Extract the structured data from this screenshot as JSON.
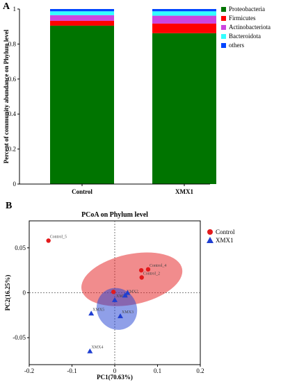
{
  "panels": {
    "a_letter": "A",
    "b_letter": "B"
  },
  "chart_data": [
    {
      "type": "bar",
      "stacked": true,
      "title": "",
      "xlabel": "",
      "ylabel": "Percent of community abundance on Phylum level",
      "ylim": [
        0,
        1
      ],
      "yticks": [
        0,
        0.2,
        0.4,
        0.6,
        0.8,
        1
      ],
      "ytick_labels": [
        "0",
        "0.2",
        "0.4",
        "0.6",
        "0.8",
        "1"
      ],
      "categories": [
        "Control",
        "XMX1"
      ],
      "legend_position": "right",
      "series": [
        {
          "name": "Proteobacteria",
          "color": "#007400",
          "values": [
            0.905,
            0.862
          ]
        },
        {
          "name": "Firmicutes",
          "color": "#ff0000",
          "values": [
            0.028,
            0.055
          ]
        },
        {
          "name": "Actinobacteriota",
          "color": "#cc44e0",
          "values": [
            0.032,
            0.045
          ]
        },
        {
          "name": "Bacteroidota",
          "color": "#33ffff",
          "values": [
            0.022,
            0.025
          ]
        },
        {
          "name": "others",
          "color": "#0044ff",
          "values": [
            0.013,
            0.013
          ]
        }
      ]
    },
    {
      "type": "scatter",
      "title": "PCoA on Phylum level",
      "xlabel": "PC1(70.63%)",
      "ylabel": "PC2(16.25%)",
      "xlim": [
        -0.2,
        0.2
      ],
      "ylim": [
        -0.08,
        0.08
      ],
      "xticks": [
        -0.2,
        -0.1,
        0,
        0.1,
        0.2
      ],
      "xtick_labels": [
        "-0.2",
        "-0.1",
        "0",
        "0.1",
        "0.2"
      ],
      "yticks": [
        -0.05,
        0,
        0.05
      ],
      "ytick_labels": [
        "-0.05",
        "0",
        "0.05"
      ],
      "legend_position": "top-right",
      "series": [
        {
          "name": "Control",
          "color": "#e31a1c",
          "marker": "circle",
          "points": [
            {
              "label": "Control_5",
              "x": -0.155,
              "y": 0.058
            },
            {
              "label": "",
              "x": -0.003,
              "y": 0.001
            },
            {
              "label": "Control_2",
              "x": 0.063,
              "y": 0.017
            },
            {
              "label": "",
              "x": 0.062,
              "y": 0.025
            },
            {
              "label": "Control_4",
              "x": 0.078,
              "y": 0.026
            }
          ],
          "ellipse": {
            "cx": 0.04,
            "cy": 0.015,
            "rx": 0.12,
            "ry": 0.028,
            "angle_deg": -12
          }
        },
        {
          "name": "XMX1",
          "color": "#1f3fd1",
          "marker": "triangle",
          "points": [
            {
              "label": "XMX5",
              "x": -0.055,
              "y": -0.023
            },
            {
              "label": "XMX4",
              "x": -0.058,
              "y": -0.065
            },
            {
              "label": "XMX1",
              "x": 0,
              "y": -0.008
            },
            {
              "label": "XMX3",
              "x": 0.013,
              "y": -0.026
            },
            {
              "label": "XMX2",
              "x": 0.024,
              "y": -0.003
            },
            {
              "label": "",
              "x": 0.03,
              "y": 0
            }
          ],
          "ellipse": {
            "cx": 0.005,
            "cy": -0.018,
            "rx": 0.05,
            "ry": 0.022,
            "angle_deg": 58
          }
        }
      ]
    }
  ]
}
